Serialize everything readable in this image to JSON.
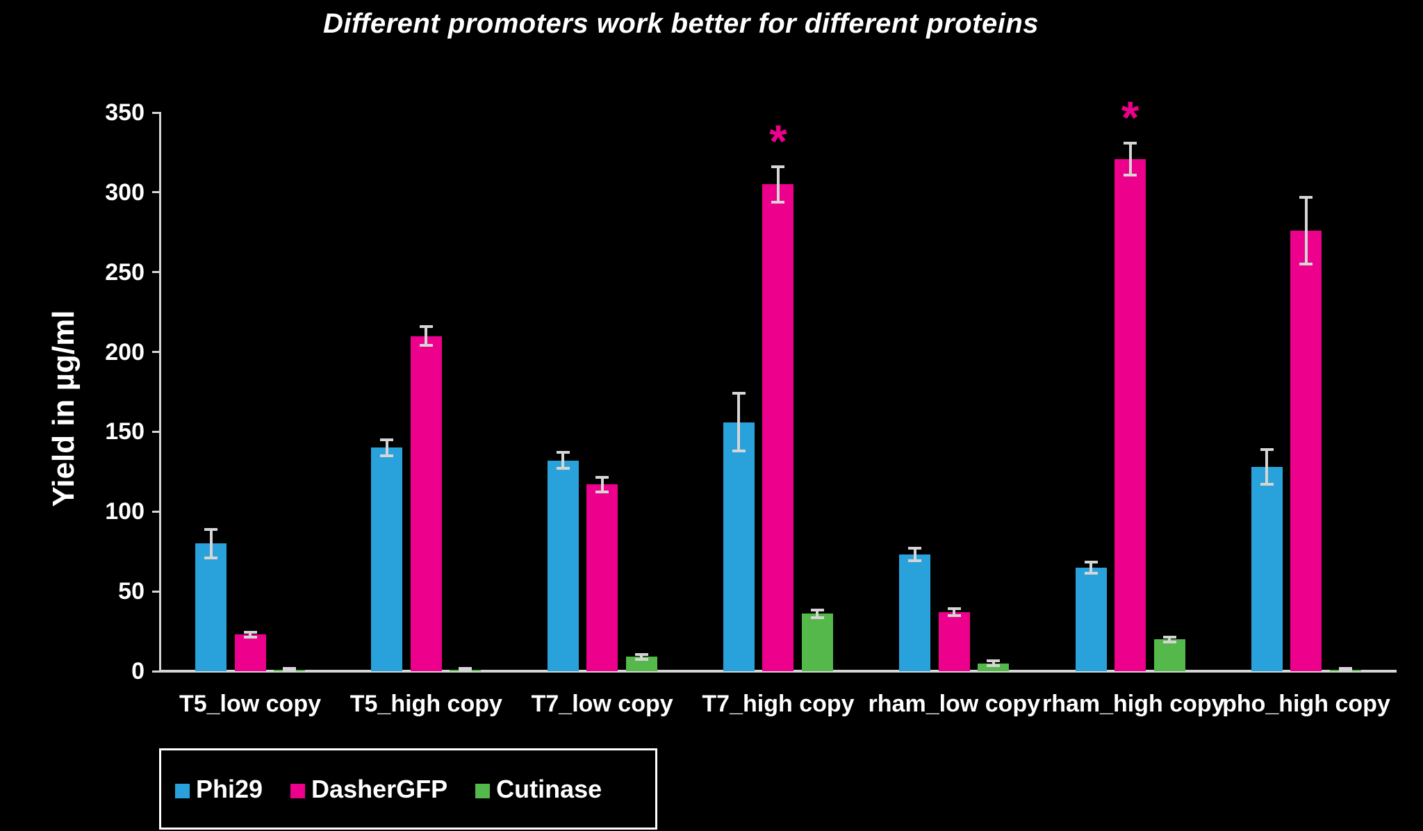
{
  "title": "Different promoters work better for different proteins",
  "y_axis": {
    "label": "Yield in µg/ml",
    "ticks": [
      0,
      50,
      100,
      150,
      200,
      250,
      300,
      350
    ]
  },
  "significance_marker": "*",
  "colors": {
    "background": "#000000",
    "text": "#ffffff",
    "axis": "#d5d5d5",
    "error_bar": "#d5d5d5",
    "phi29_blue": "#29A2DB",
    "dashergfp_pink": "#EC008C",
    "cutinase_green": "#55B84A"
  },
  "chart_data": {
    "type": "bar",
    "title": "Different promoters work better for different proteins",
    "xlabel": "",
    "ylabel": "Yield in µg/ml",
    "ylim": [
      0,
      350
    ],
    "ytick_step": 50,
    "grid": false,
    "legend_position": "bottom",
    "error_bars": true,
    "categories": [
      "T5_low copy",
      "T5_high copy",
      "T7_low copy",
      "T7_high copy",
      "rham_low copy",
      "rham_high copy",
      "pho_high copy"
    ],
    "series": [
      {
        "name": "Phi29",
        "color": "#29A2DB",
        "values": [
          80,
          140,
          132,
          156,
          73,
          65,
          128
        ],
        "errors": [
          9,
          5,
          5,
          18,
          4,
          3.5,
          11
        ],
        "significant": [
          false,
          false,
          false,
          false,
          false,
          false,
          false
        ]
      },
      {
        "name": "DasherGFP",
        "color": "#EC008C",
        "values": [
          23,
          210,
          117,
          305,
          37,
          321,
          276
        ],
        "errors": [
          1.5,
          6,
          4.5,
          11,
          2,
          10,
          21
        ],
        "significant": [
          false,
          false,
          false,
          true,
          false,
          true,
          false
        ]
      },
      {
        "name": "Cutinase",
        "color": "#55B84A",
        "values": [
          1,
          1,
          9,
          36,
          5,
          20,
          1
        ],
        "errors": [
          0.8,
          0.8,
          1.5,
          2.5,
          1.5,
          1.5,
          0.8
        ],
        "significant": [
          false,
          false,
          false,
          false,
          false,
          false,
          false
        ]
      }
    ]
  }
}
